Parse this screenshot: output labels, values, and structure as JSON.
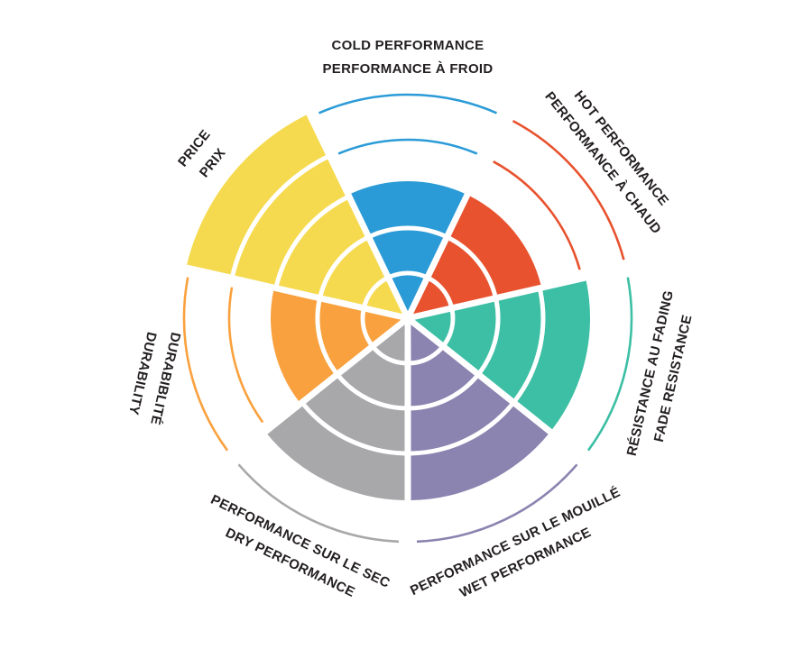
{
  "style": {
    "background": "#ffffff",
    "label_color": "#231f20"
  },
  "chart_data": {
    "type": "bar",
    "variant": "polar-sector-wheel (tire performance rating chart)",
    "scale": {
      "min": 0,
      "max": 5,
      "rings": 5
    },
    "grid": "concentric white ring lines inside filled sectors; unfilled levels shown as thin colored arcs",
    "slices": [
      {
        "id": "cold-performance",
        "label_line1": "COLD PERFORMANCE",
        "label_line2": "PERFORMANCE À FROID",
        "value": 3,
        "max": 5,
        "color": "#2b9bd7"
      },
      {
        "id": "hot-performance",
        "label_line1": "HOT PERFORMANCE",
        "label_line2": "PERFORMANCE À CHAUD",
        "value": 3,
        "max": 5,
        "color": "#e8522e"
      },
      {
        "id": "fade-resistance",
        "label_line1": "RÉSISTANCE AU FADING",
        "label_line2": "FADE RESISTANCE",
        "value": 4,
        "max": 5,
        "color": "#3cbfa4"
      },
      {
        "id": "wet-performance",
        "label_line1": "PERFORMANCE SUR LE MOUILLÉ",
        "label_line2": "WET PERFORMANCE",
        "value": 4,
        "max": 5,
        "color": "#8b83b0"
      },
      {
        "id": "dry-performance",
        "label_line1": "PERFORMANCE SUR LE SEC",
        "label_line2": "DRY PERFORMANCE",
        "value": 4,
        "max": 5,
        "color": "#a8a8ab"
      },
      {
        "id": "durability",
        "label_line1": "DURABIBLITÉ",
        "label_line2": "DURABILITY",
        "value": 3,
        "max": 5,
        "color": "#f9a13e"
      },
      {
        "id": "price",
        "label_line1": "PRICE",
        "label_line2": "PRIX",
        "value": 5,
        "max": 5,
        "color": "#f5da4f"
      }
    ]
  }
}
